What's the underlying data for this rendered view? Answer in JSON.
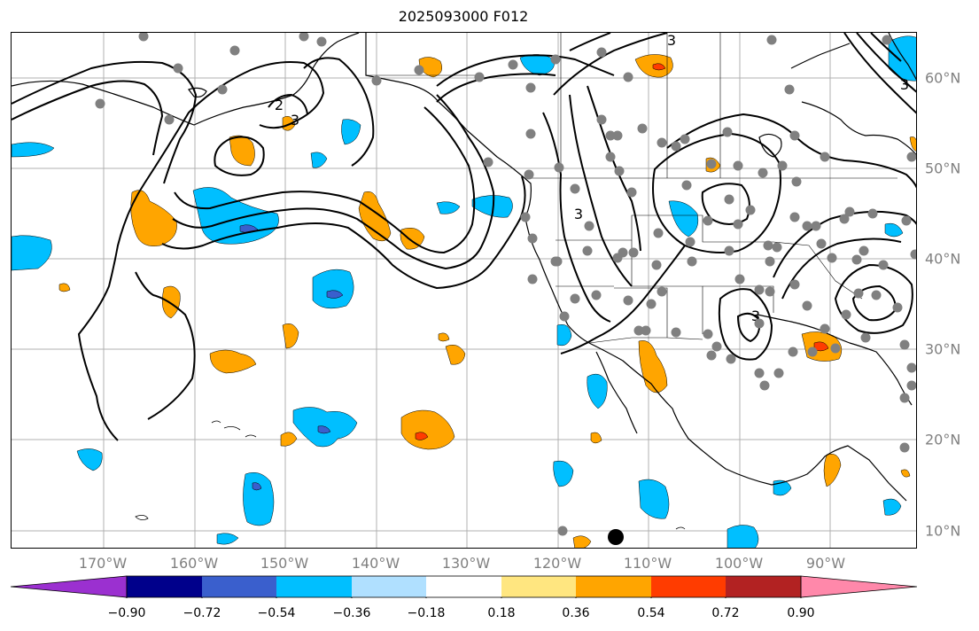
{
  "title": "2025093000 F012",
  "lon_labels": [
    "170°W",
    "160°W",
    "150°W",
    "140°W",
    "130°W",
    "120°W",
    "110°W",
    "100°W",
    "90°W"
  ],
  "lat_labels": [
    "60°N",
    "50°N",
    "40°N",
    "30°N",
    "20°N",
    "10°N"
  ],
  "colorbar": {
    "ticks": [
      "−0.90",
      "−0.72",
      "−0.54",
      "−0.36",
      "−0.18",
      "0.18",
      "0.36",
      "0.54",
      "0.72",
      "0.90"
    ],
    "colors": [
      "#9b30d0",
      "#00008b",
      "#3a5fcd",
      "#00bfff",
      "#b0e0ff",
      "#ffffff",
      "#ffe680",
      "#ffa500",
      "#ff3c00",
      "#b22222",
      "#ff88aa"
    ]
  },
  "contour_labels": [
    "2",
    "3",
    "3",
    "3",
    "3",
    "3"
  ],
  "colors": {
    "grid": "#b0b0b0",
    "station": "#808080",
    "positive": "#ffa500",
    "positive_strong": "#ff3c00",
    "negative": "#00bfff",
    "negative_strong": "#3a5fcd"
  }
}
